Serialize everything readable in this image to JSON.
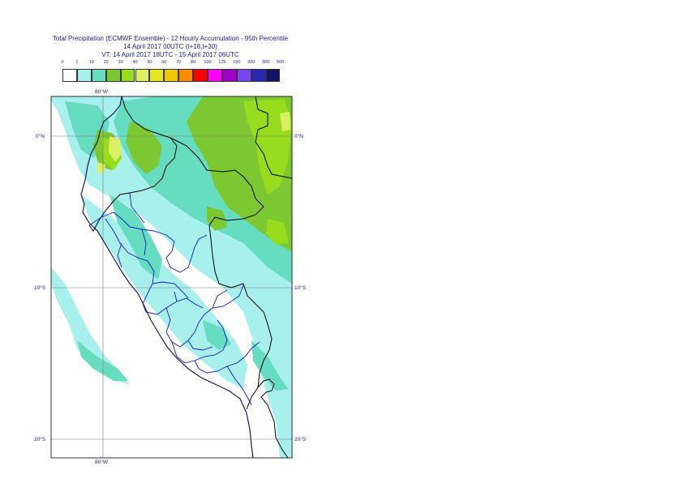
{
  "title": {
    "line1": "Total Precipitation (ECMWF Ensemble) - 12 Hourly Accumulation - 95th Percentile",
    "line2": "14 April 2017 00UTC (t+18,t+30)",
    "line3": "VT: 14 April 2017 18UTC - 15 April 2017 06UTC"
  },
  "legend": {
    "labels": [
      "0",
      "1",
      "10",
      "20",
      "30",
      "40",
      "50",
      "60",
      "70",
      "80",
      "100",
      "125",
      "150",
      "200",
      "300",
      "500"
    ],
    "colors": [
      "#ffffff",
      "#a8f0ec",
      "#66dcc0",
      "#7cc832",
      "#98dc1e",
      "#dcf064",
      "#e6e620",
      "#f0c800",
      "#ff8c00",
      "#ff0000",
      "#ff00ff",
      "#a000c8",
      "#7846f0",
      "#2828b4",
      "#141464"
    ]
  },
  "axes": {
    "lon_top": "80°W",
    "lon_bottom": "80°W",
    "lat_0_left": "0°N",
    "lat_0_right": "0°N",
    "lat_10_left": "10°S",
    "lat_10_right": "10°S",
    "lat_20_left": "20°S",
    "lat_20_right": "20°S"
  }
}
